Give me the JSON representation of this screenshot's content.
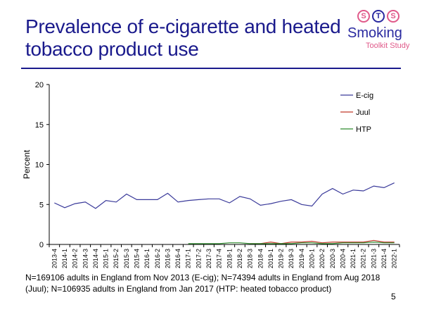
{
  "slide": {
    "title": "Prevalence of e-cigarette and heated tobacco product use",
    "footnote": "N=169106 adults in England from Nov 2013 (E-cig); N=74394 adults in England from Aug 2018 (Juul);  N=106935 adults in England from Jan 2017 (HTP: heated tobacco product)",
    "page_number": "5"
  },
  "logo": {
    "letters": [
      "S",
      "T",
      "S"
    ],
    "word": "Smoking",
    "subtitle": "Toolkit Study"
  },
  "colors": {
    "title": "#1a1a8c",
    "ecig": "#3a3a9a",
    "juul": "#c0392b",
    "htp": "#2e8b2e"
  },
  "chart_data": {
    "type": "line",
    "title": "",
    "xlabel": "",
    "ylabel": "Percent",
    "ylim": [
      0,
      20
    ],
    "yticks": [
      0,
      5,
      10,
      15,
      20
    ],
    "legend_position": "top-right",
    "categories": [
      "2013-4",
      "2014-1",
      "2014-2",
      "2014-3",
      "2014-4",
      "2015-1",
      "2015-2",
      "2015-3",
      "2015-4",
      "2016-1",
      "2016-2",
      "2016-3",
      "2016-4",
      "2017-1",
      "2017-2",
      "2017-3",
      "2017-4",
      "2018-1",
      "2018-2",
      "2018-3",
      "2018-4",
      "2019-1",
      "2019-2",
      "2019-3",
      "2019-4",
      "2020-1",
      "2020-2",
      "2020-3",
      "2020-4",
      "2021-1",
      "2021-2",
      "2021-3",
      "2021-4",
      "2022-1"
    ],
    "series": [
      {
        "name": "E-cig",
        "color": "#3a3a9a",
        "values": [
          5.2,
          4.6,
          5.1,
          5.3,
          4.5,
          5.5,
          5.3,
          6.3,
          5.6,
          5.6,
          5.6,
          6.4,
          5.3,
          5.5,
          5.6,
          5.7,
          5.7,
          5.2,
          6.0,
          5.7,
          4.9,
          5.1,
          5.4,
          5.6,
          5.0,
          4.8,
          6.3,
          7.0,
          6.3,
          6.8,
          6.7,
          7.3,
          7.1,
          7.7
        ]
      },
      {
        "name": "Juul",
        "color": "#c0392b",
        "values": [
          null,
          null,
          null,
          null,
          null,
          null,
          null,
          null,
          null,
          null,
          null,
          null,
          null,
          null,
          null,
          null,
          null,
          null,
          null,
          0.1,
          0.1,
          0.3,
          0.1,
          0.3,
          0.3,
          0.4,
          0.2,
          0.3,
          0.3,
          0.3,
          0.3,
          0.5,
          0.3,
          0.3
        ]
      },
      {
        "name": "HTP",
        "color": "#2e8b2e",
        "values": [
          null,
          null,
          null,
          null,
          null,
          null,
          null,
          null,
          null,
          null,
          null,
          null,
          null,
          0.1,
          0.1,
          0.1,
          0.1,
          0.2,
          0.2,
          0.1,
          0.1,
          0.1,
          0.1,
          0.1,
          0.2,
          0.2,
          0.1,
          0.1,
          0.2,
          0.2,
          0.2,
          0.3,
          0.2,
          0.2
        ]
      }
    ]
  }
}
